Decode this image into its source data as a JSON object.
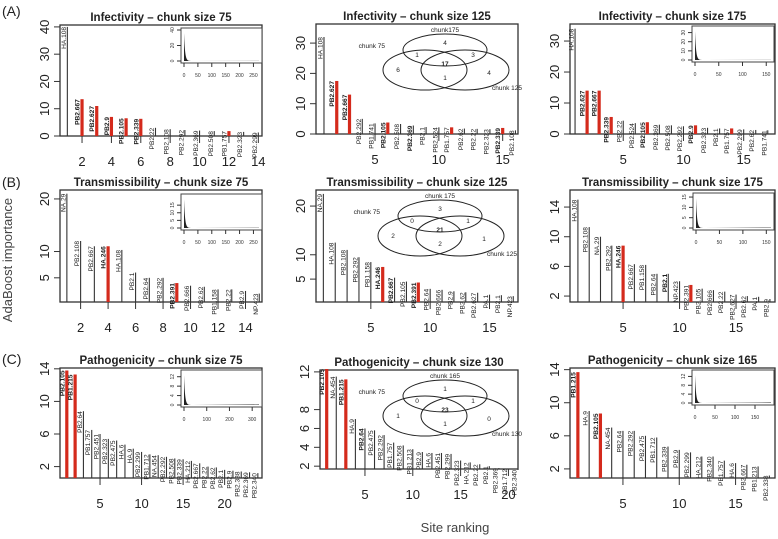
{
  "panel_letters": [
    "(A)",
    "(B)",
    "(C)"
  ],
  "y_axis_label": "AdaBoost importance",
  "x_axis_label": "Site ranking",
  "colors": {
    "highlight": "#d42a1c",
    "bar": "#333333"
  },
  "chart_data": [
    {
      "id": "A1",
      "type": "bar",
      "title": "Infectivity – chunk size 75",
      "xlim": [
        0.5,
        14.25
      ],
      "ylim": [
        0,
        40.7
      ],
      "xticks": [
        2,
        4,
        6,
        8,
        10,
        12,
        14
      ],
      "yticks": [
        0,
        10,
        20,
        30,
        40
      ],
      "bars": [
        [
          "HA.108",
          40,
          0,
          0
        ],
        [
          "PB2.667",
          13.5,
          1,
          1
        ],
        [
          "PB2.627",
          11,
          1,
          1
        ],
        [
          "PB2.9",
          7,
          1,
          1
        ],
        [
          "PB2.105",
          6.5,
          1,
          1
        ],
        [
          "PB2.339",
          6.3,
          1,
          1
        ],
        [
          "PB2.22",
          3,
          0,
          0
        ],
        [
          "PB2.108",
          2.5,
          0,
          0
        ],
        [
          "PB2.292",
          2.2,
          0,
          0
        ],
        [
          "PB2.369",
          2,
          0,
          0
        ],
        [
          "PB2.508",
          1.8,
          0,
          0
        ],
        [
          "PB1.757",
          1.8,
          1,
          0
        ],
        [
          "PB2.323",
          1.5,
          0,
          0
        ],
        [
          "PB2.299",
          1.3,
          0,
          0
        ]
      ],
      "inset": {
        "xticks": [
          0,
          50,
          100,
          150,
          200,
          250
        ],
        "yticks": [
          0,
          20,
          40
        ],
        "xmax": 270,
        "ymax": 40
      }
    },
    {
      "id": "A2",
      "type": "bar",
      "title": "Infectivity – chunk size 125",
      "xlim": [
        0.375,
        16.2
      ],
      "ylim": [
        0,
        36.3
      ],
      "xticks": [
        5,
        10,
        15
      ],
      "yticks": [
        0,
        10,
        20,
        30
      ],
      "bars": [
        [
          "HA.108",
          32,
          0,
          0
        ],
        [
          "PB2.627",
          17.5,
          1,
          1
        ],
        [
          "PB2.667",
          13,
          1,
          1
        ],
        [
          "PB2.292",
          5,
          0,
          0
        ],
        [
          "PB1.741",
          3.5,
          0,
          0
        ],
        [
          "PB2.105",
          3.8,
          1,
          1
        ],
        [
          "PB2.508",
          3.3,
          0,
          0
        ],
        [
          "PB2.369",
          2.8,
          0,
          1
        ],
        [
          "PB2.1",
          2.3,
          0,
          0
        ],
        [
          "PB2.524",
          2.2,
          0,
          0
        ],
        [
          "PB1.757",
          2.2,
          1,
          0
        ],
        [
          "PB2.62",
          1.8,
          0,
          0
        ],
        [
          "PB2.22",
          1.7,
          0,
          0
        ],
        [
          "PB2.323",
          1.6,
          0,
          0
        ],
        [
          "PB2.339",
          2,
          1,
          1
        ],
        [
          "PB2.108",
          1.2,
          0,
          0
        ]
      ],
      "venn": {
        "labels": [
          "chunk175",
          "chunk 75",
          "chunk 125"
        ],
        "top": "4",
        "left_top": "1",
        "right_top": "3",
        "center": "17",
        "left": "6",
        "right": "4",
        "bottom": "1"
      }
    },
    {
      "id": "A3",
      "type": "bar",
      "title": "Infectivity – chunk size 175",
      "xlim": [
        0.58,
        17.6
      ],
      "ylim": [
        0,
        35.5
      ],
      "xticks": [
        5,
        10,
        15
      ],
      "yticks": [
        0,
        10,
        20,
        30
      ],
      "bars": [
        [
          "HA.108",
          34,
          0,
          0
        ],
        [
          "PB2.627",
          14,
          1,
          1
        ],
        [
          "PB2.667",
          14,
          1,
          1
        ],
        [
          "PB2.339",
          5.5,
          1,
          1
        ],
        [
          "PB2.22",
          4.3,
          0,
          0
        ],
        [
          "PB2.524",
          3.5,
          0,
          0
        ],
        [
          "PB2.105",
          3.8,
          1,
          1
        ],
        [
          "PB2.369",
          3,
          0,
          0
        ],
        [
          "PB2.508",
          2.8,
          0,
          0
        ],
        [
          "PB2.292",
          2.5,
          0,
          0
        ],
        [
          "PB2.9",
          2.8,
          1,
          1
        ],
        [
          "PB2.323",
          2,
          0,
          0
        ],
        [
          "PB2.1",
          1.8,
          0,
          0
        ],
        [
          "PB1.757",
          1.8,
          1,
          0
        ],
        [
          "PB2.299",
          1.5,
          0,
          0
        ],
        [
          "PB2.62",
          1.3,
          0,
          0
        ],
        [
          "PB1.741",
          1.2,
          0,
          0
        ]
      ],
      "inset": {
        "xticks": [
          0,
          50,
          100,
          150
        ],
        "yticks": [
          0,
          10,
          20,
          30
        ],
        "xmax": 160,
        "ymax": 35
      }
    },
    {
      "id": "B1",
      "type": "bar",
      "title": "Transmissibility – chunk size 75",
      "xlim": [
        0.5,
        15.2
      ],
      "ylim": [
        0.4,
        21.7
      ],
      "xticks": [
        2,
        4,
        6,
        8,
        10,
        12,
        14
      ],
      "yticks": [
        5,
        10,
        20
      ],
      "bars": [
        [
          "NA.29",
          21,
          0,
          0
        ],
        [
          "PB2.108",
          12,
          0,
          0
        ],
        [
          "PB2.667",
          11,
          0,
          0
        ],
        [
          "HA.246",
          11,
          1,
          1
        ],
        [
          "HA.108",
          10.3,
          0,
          0
        ],
        [
          "PB2.1",
          6,
          0,
          0
        ],
        [
          "PB2.64",
          5,
          0,
          0
        ],
        [
          "PB2.292",
          5,
          0,
          0
        ],
        [
          "PB2.391",
          4,
          1,
          1
        ],
        [
          "PB2.666",
          3.5,
          0,
          0
        ],
        [
          "PB2.62",
          3.3,
          0,
          0
        ],
        [
          "PB1.158",
          2.8,
          0,
          0
        ],
        [
          "PB2.22",
          2.8,
          0,
          0
        ],
        [
          "PB2.9",
          2.5,
          0,
          0
        ],
        [
          "NP.423",
          2,
          0,
          0
        ]
      ],
      "inset": {
        "xticks": [
          0,
          50,
          100,
          150,
          200,
          250
        ],
        "yticks": [
          0,
          5,
          10,
          15
        ],
        "xmax": 270,
        "ymax": 21
      }
    },
    {
      "id": "B2",
      "type": "bar",
      "title": "Transmissibility – chunk size 125",
      "xlim": [
        0.38,
        17.4
      ],
      "ylim": [
        0.3,
        23.3
      ],
      "xticks": [
        5,
        10,
        15
      ],
      "yticks": [
        5,
        10,
        20
      ],
      "bars": [
        [
          "NA.29",
          22.5,
          0,
          0
        ],
        [
          "HA.108",
          12.5,
          0,
          0
        ],
        [
          "PB2.108",
          11,
          0,
          0
        ],
        [
          "PB2.292",
          9.5,
          0,
          0
        ],
        [
          "PB1.158",
          8.5,
          0,
          0
        ],
        [
          "HA.246",
          7.5,
          1,
          1
        ],
        [
          "PB2.667",
          5.3,
          0,
          1
        ],
        [
          "PB2.105",
          4.5,
          0,
          0
        ],
        [
          "PB2.391",
          4.3,
          1,
          1
        ],
        [
          "PB2.64",
          3,
          0,
          0
        ],
        [
          "PB2.666",
          2.8,
          0,
          0
        ],
        [
          "PB2.9",
          2.5,
          0,
          0
        ],
        [
          "PB2.62",
          2.3,
          0,
          0
        ],
        [
          "PB2.627",
          2.2,
          0,
          0
        ],
        [
          "PA.1",
          1.8,
          0,
          0
        ],
        [
          "PB2.1",
          1.7,
          0,
          0
        ],
        [
          "NP.423",
          1.5,
          0,
          0
        ]
      ],
      "venn": {
        "labels": [
          "chunk 175",
          "chunk 75",
          "chunk 125"
        ],
        "top": "3",
        "left_top": "0",
        "right_top": "1",
        "center": "21",
        "left": "2",
        "right": "1",
        "bottom": "2"
      }
    },
    {
      "id": "B3",
      "type": "bar",
      "title": "Transmissibility – chunk size 175",
      "xlim": [
        0.3,
        18.45
      ],
      "ylim": [
        1.2,
        16.3
      ],
      "xticks": [
        5,
        10,
        15
      ],
      "yticks": [
        2,
        6,
        10,
        14
      ],
      "bars": [
        [
          "HA.108",
          15,
          0,
          0
        ],
        [
          "PB2.108",
          11.3,
          0,
          0
        ],
        [
          "NA.29",
          10,
          0,
          0
        ],
        [
          "PB2.292",
          8.8,
          0,
          0
        ],
        [
          "HA.246",
          8.8,
          1,
          1
        ],
        [
          "PB2.667",
          6.3,
          0,
          0
        ],
        [
          "PB1.158",
          6.2,
          0,
          0
        ],
        [
          "PB2.64",
          5,
          0,
          0
        ],
        [
          "PB2.1",
          5,
          0,
          1
        ],
        [
          "NP.423",
          4,
          0,
          0
        ],
        [
          "PB2.391",
          3.5,
          1,
          0
        ],
        [
          "PB2.105",
          3,
          0,
          0
        ],
        [
          "PB2.666",
          2.8,
          0,
          0
        ],
        [
          "PB2.22",
          2.6,
          0,
          0
        ],
        [
          "PB2.627",
          2.2,
          0,
          0
        ],
        [
          "PB2.62",
          2,
          0,
          0
        ],
        [
          "PA.1",
          1.9,
          0,
          0
        ],
        [
          "PB2.9",
          1.6,
          0,
          0
        ]
      ],
      "inset": {
        "xticks": [
          0,
          50,
          100,
          150
        ],
        "yticks": [
          0,
          5,
          10,
          15
        ],
        "xmax": 160,
        "ymax": 16
      }
    },
    {
      "id": "C1",
      "type": "bar",
      "title": "Pathogenicity – chunk size 75",
      "xlim": [
        0.18,
        24.5
      ],
      "ylim": [
        0.6,
        14.1
      ],
      "xticks": [
        5,
        10,
        15,
        20
      ],
      "yticks": [
        2,
        6,
        10,
        14
      ],
      "bars": [
        [
          "PB2.105",
          13.8,
          1,
          1
        ],
        [
          "PB1.215",
          13.3,
          1,
          1
        ],
        [
          "PB2.64",
          8.8,
          0,
          0
        ],
        [
          "PB1.757",
          6.5,
          0,
          0
        ],
        [
          "PB2.451",
          6,
          0,
          0
        ],
        [
          "PB2.323",
          5.4,
          0,
          0
        ],
        [
          "PB2.475",
          5.2,
          0,
          0
        ],
        [
          "HA.6",
          4.7,
          0,
          0
        ],
        [
          "HA.9",
          4.2,
          0,
          0
        ],
        [
          "PB2.299",
          3.8,
          0,
          0
        ],
        [
          "PB1.712",
          3.5,
          0,
          0
        ],
        [
          "NA.454",
          3.4,
          0,
          0
        ],
        [
          "PB2.292",
          3.2,
          0,
          0
        ],
        [
          "PB2.508",
          3,
          0,
          0
        ],
        [
          "PB2.339",
          2.9,
          0,
          0
        ],
        [
          "HA.212",
          2.7,
          0,
          0
        ],
        [
          "PB2.667",
          2.4,
          0,
          0
        ],
        [
          "PB2.22",
          2,
          0,
          0
        ],
        [
          "PB2.62",
          1.9,
          0,
          0
        ],
        [
          "PB2.1",
          1.6,
          0,
          0
        ],
        [
          "PB2.9",
          1.5,
          0,
          0
        ],
        [
          "PB2.338",
          1.4,
          0,
          0
        ],
        [
          "PB2.369",
          1.3,
          0,
          0
        ],
        [
          "PB2.340",
          1.2,
          0,
          0
        ]
      ],
      "inset": {
        "xticks": [
          0,
          100,
          200,
          300
        ],
        "yticks": [
          0,
          4,
          8,
          12
        ],
        "xmax": 330,
        "ymax": 14
      }
    },
    {
      "id": "C2",
      "type": "bar",
      "title": "Pathogenicity – chunk size 130",
      "xlim": [
        0.3,
        21
      ],
      "ylim": [
        1.7,
        12.2
      ],
      "xticks": [
        5,
        10,
        15,
        20
      ],
      "yticks": [
        2,
        4,
        6,
        8,
        12
      ],
      "bars": [
        [
          "PB2.105",
          12.3,
          1,
          1
        ],
        [
          "NA.454",
          11.5,
          0,
          0
        ],
        [
          "PB1.215",
          11.2,
          1,
          1
        ],
        [
          "HA.9",
          7,
          0,
          0
        ],
        [
          "PB2.64",
          6,
          0,
          1
        ],
        [
          "PB2.475",
          5.8,
          0,
          0
        ],
        [
          "PB2.292",
          5.3,
          0,
          0
        ],
        [
          "PB1.757",
          4.5,
          0,
          0
        ],
        [
          "PB2.508",
          4.2,
          0,
          0
        ],
        [
          "PB1.213",
          3.8,
          0,
          0
        ],
        [
          "PB2.9",
          3.5,
          0,
          0
        ],
        [
          "HA.6",
          3.4,
          0,
          0
        ],
        [
          "PB2.451",
          3.4,
          0,
          0
        ],
        [
          "PB2.299",
          3.3,
          0,
          0
        ],
        [
          "PB2.323",
          2.6,
          0,
          0
        ],
        [
          "HA.212",
          2.4,
          0,
          0
        ],
        [
          "PB2.22",
          2.2,
          0,
          0
        ],
        [
          "PB2.1",
          2,
          0,
          0
        ],
        [
          "PB2.369",
          1.8,
          0,
          0
        ],
        [
          "PB1.712",
          1.7,
          0,
          0
        ],
        [
          "PB2.340",
          1.6,
          0,
          0
        ]
      ],
      "venn": {
        "labels": [
          "chunk 165",
          "chunk 75",
          "chunk 130"
        ],
        "top": "1",
        "left_top": "0",
        "right_top": "1",
        "center": "23",
        "left": "1",
        "right": "0",
        "bottom": "1"
      }
    },
    {
      "id": "C3",
      "type": "bar",
      "title": "Pathogenicity – chunk size 165",
      "xlim": [
        0.3,
        18.5
      ],
      "ylim": [
        0.9,
        14.2
      ],
      "xticks": [
        5,
        10,
        15
      ],
      "yticks": [
        2,
        6,
        10,
        14
      ],
      "bars": [
        [
          "PB1.215",
          13.7,
          1,
          1
        ],
        [
          "HA.9",
          9,
          0,
          0
        ],
        [
          "PB2.105",
          8.7,
          1,
          1
        ],
        [
          "NA.454",
          7,
          0,
          0
        ],
        [
          "PB2.64",
          6.6,
          0,
          0
        ],
        [
          "PB2.292",
          6.6,
          0,
          0
        ],
        [
          "PB2.475",
          6,
          0,
          0
        ],
        [
          "PB1.712",
          5.8,
          0,
          0
        ],
        [
          "PB2.339",
          4.7,
          0,
          0
        ],
        [
          "PB2.9",
          4.3,
          0,
          0
        ],
        [
          "PB2.299",
          4,
          0,
          0
        ],
        [
          "HA.212",
          3.5,
          0,
          0
        ],
        [
          "PB2.340",
          3.5,
          0,
          0
        ],
        [
          "PB1.757",
          3,
          0,
          0
        ],
        [
          "HA.6",
          2.7,
          0,
          0
        ],
        [
          "PB2.667",
          2.5,
          0,
          0
        ],
        [
          "PB1.213",
          2.3,
          0,
          0
        ],
        [
          "PB2.338",
          1.2,
          0,
          0
        ]
      ],
      "inset": {
        "xticks": [
          0,
          50,
          100,
          150
        ],
        "yticks": [
          0,
          4,
          8,
          12
        ],
        "xmax": 190,
        "ymax": 14
      }
    }
  ]
}
